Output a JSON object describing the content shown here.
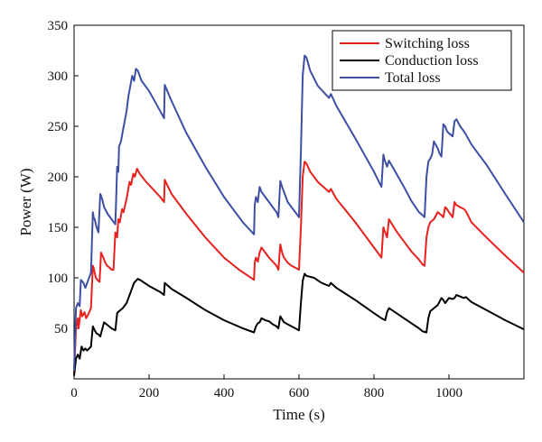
{
  "chart_data": {
    "type": "line",
    "title": "",
    "xlabel": "Time (s)",
    "ylabel": "Power (W)",
    "xlim": [
      0,
      1200
    ],
    "ylim": [
      0,
      350
    ],
    "xticks": [
      0,
      200,
      400,
      600,
      800,
      1000
    ],
    "yticks": [
      50,
      100,
      150,
      200,
      250,
      300,
      350
    ],
    "grid": false,
    "legend_position": "top-right",
    "series": [
      {
        "name": "Switching loss",
        "color": "#e8211e",
        "x": [
          0,
          5,
          10,
          12,
          18,
          22,
          28,
          32,
          38,
          45,
          50,
          52,
          58,
          62,
          68,
          72,
          78,
          82,
          88,
          95,
          100,
          105,
          110,
          115,
          118,
          122,
          128,
          132,
          135,
          140,
          148,
          152,
          158,
          162,
          168,
          175,
          190,
          210,
          230,
          240,
          242,
          260,
          300,
          350,
          400,
          440,
          480,
          482,
          485,
          490,
          495,
          500,
          510,
          520,
          530,
          540,
          545,
          550,
          555,
          560,
          570,
          580,
          590,
          600,
          605,
          610,
          615,
          620,
          630,
          650,
          680,
          685,
          700,
          750,
          800,
          820,
          825,
          830,
          835,
          840,
          860,
          880,
          900,
          920,
          930,
          935,
          940,
          945,
          950,
          960,
          970,
          980,
          985,
          990,
          995,
          1000,
          1010,
          1015,
          1020,
          1030,
          1040,
          1045,
          1060,
          1100,
          1150,
          1200
        ],
        "y": [
          5,
          50,
          60,
          50,
          68,
          62,
          66,
          60,
          64,
          70,
          112,
          110,
          100,
          98,
          96,
          125,
          120,
          116,
          112,
          110,
          108,
          108,
          145,
          140,
          158,
          155,
          168,
          165,
          170,
          178,
          195,
          192,
          203,
          200,
          208,
          203,
          196,
          188,
          180,
          175,
          197,
          183,
          163,
          140,
          120,
          108,
          98,
          115,
          120,
          116,
          125,
          130,
          125,
          120,
          116,
          112,
          108,
          133,
          125,
          120,
          115,
          112,
          110,
          108,
          150,
          200,
          215,
          213,
          205,
          195,
          185,
          188,
          178,
          155,
          130,
          120,
          150,
          145,
          140,
          158,
          146,
          136,
          126,
          118,
          113,
          112,
          140,
          150,
          155,
          158,
          165,
          162,
          160,
          170,
          168,
          165,
          160,
          175,
          172,
          170,
          168,
          166,
          155,
          140,
          122,
          105
        ]
      },
      {
        "name": "Conduction loss",
        "color": "#000000",
        "x": [
          0,
          5,
          10,
          15,
          20,
          25,
          30,
          35,
          40,
          45,
          50,
          55,
          60,
          65,
          70,
          80,
          90,
          100,
          110,
          115,
          120,
          130,
          140,
          150,
          160,
          170,
          180,
          200,
          230,
          240,
          242,
          260,
          300,
          350,
          400,
          450,
          480,
          485,
          490,
          495,
          500,
          510,
          520,
          530,
          540,
          545,
          550,
          555,
          560,
          570,
          580,
          590,
          600,
          605,
          610,
          615,
          620,
          640,
          660,
          680,
          685,
          700,
          750,
          800,
          820,
          830,
          835,
          840,
          860,
          880,
          900,
          920,
          930,
          940,
          945,
          950,
          960,
          970,
          980,
          985,
          990,
          1000,
          1010,
          1015,
          1020,
          1040,
          1045,
          1060,
          1100,
          1150,
          1200
        ],
        "y": [
          3,
          20,
          24,
          20,
          32,
          28,
          30,
          28,
          30,
          32,
          52,
          48,
          45,
          44,
          42,
          56,
          53,
          50,
          48,
          65,
          67,
          70,
          75,
          85,
          95,
          99,
          97,
          92,
          86,
          83,
          95,
          89,
          80,
          68,
          58,
          50,
          46,
          52,
          55,
          56,
          60,
          58,
          57,
          54,
          52,
          50,
          62,
          59,
          56,
          54,
          52,
          50,
          48,
          75,
          97,
          104,
          102,
          100,
          95,
          92,
          95,
          90,
          78,
          65,
          60,
          58,
          66,
          70,
          65,
          60,
          55,
          50,
          47,
          46,
          60,
          67,
          70,
          73,
          80,
          78,
          75,
          80,
          79,
          80,
          83,
          80,
          81,
          76,
          68,
          58,
          49
        ]
      },
      {
        "name": "Total loss",
        "color": "#3e4fa3",
        "x": [
          0,
          5,
          10,
          15,
          18,
          25,
          30,
          35,
          40,
          45,
          50,
          52,
          55,
          60,
          65,
          70,
          75,
          80,
          90,
          100,
          110,
          115,
          118,
          120,
          125,
          130,
          135,
          140,
          145,
          150,
          155,
          160,
          165,
          170,
          180,
          200,
          230,
          240,
          242,
          260,
          300,
          350,
          400,
          450,
          480,
          482,
          485,
          490,
          495,
          500,
          510,
          520,
          530,
          540,
          545,
          550,
          555,
          560,
          570,
          580,
          590,
          600,
          605,
          610,
          615,
          620,
          630,
          650,
          680,
          685,
          700,
          750,
          800,
          820,
          825,
          830,
          835,
          840,
          860,
          880,
          900,
          920,
          930,
          935,
          940,
          945,
          950,
          955,
          960,
          970,
          975,
          980,
          985,
          990,
          995,
          1000,
          1010,
          1015,
          1020,
          1030,
          1040,
          1045,
          1060,
          1100,
          1150,
          1200
        ],
        "y": [
          8,
          70,
          75,
          72,
          98,
          95,
          90,
          95,
          100,
          105,
          165,
          160,
          158,
          150,
          145,
          183,
          178,
          170,
          163,
          158,
          153,
          210,
          205,
          230,
          235,
          245,
          255,
          265,
          280,
          290,
          300,
          295,
          307,
          305,
          295,
          285,
          265,
          258,
          291,
          275,
          243,
          210,
          180,
          155,
          143,
          172,
          180,
          175,
          190,
          185,
          180,
          175,
          170,
          165,
          160,
          196,
          190,
          185,
          175,
          170,
          165,
          160,
          225,
          300,
          320,
          318,
          305,
          290,
          278,
          282,
          270,
          238,
          205,
          190,
          222,
          215,
          210,
          216,
          203,
          190,
          176,
          165,
          162,
          160,
          200,
          215,
          218,
          222,
          235,
          228,
          223,
          220,
          252,
          250,
          245,
          243,
          240,
          255,
          257,
          250,
          245,
          242,
          232,
          212,
          183,
          155
        ]
      }
    ]
  }
}
